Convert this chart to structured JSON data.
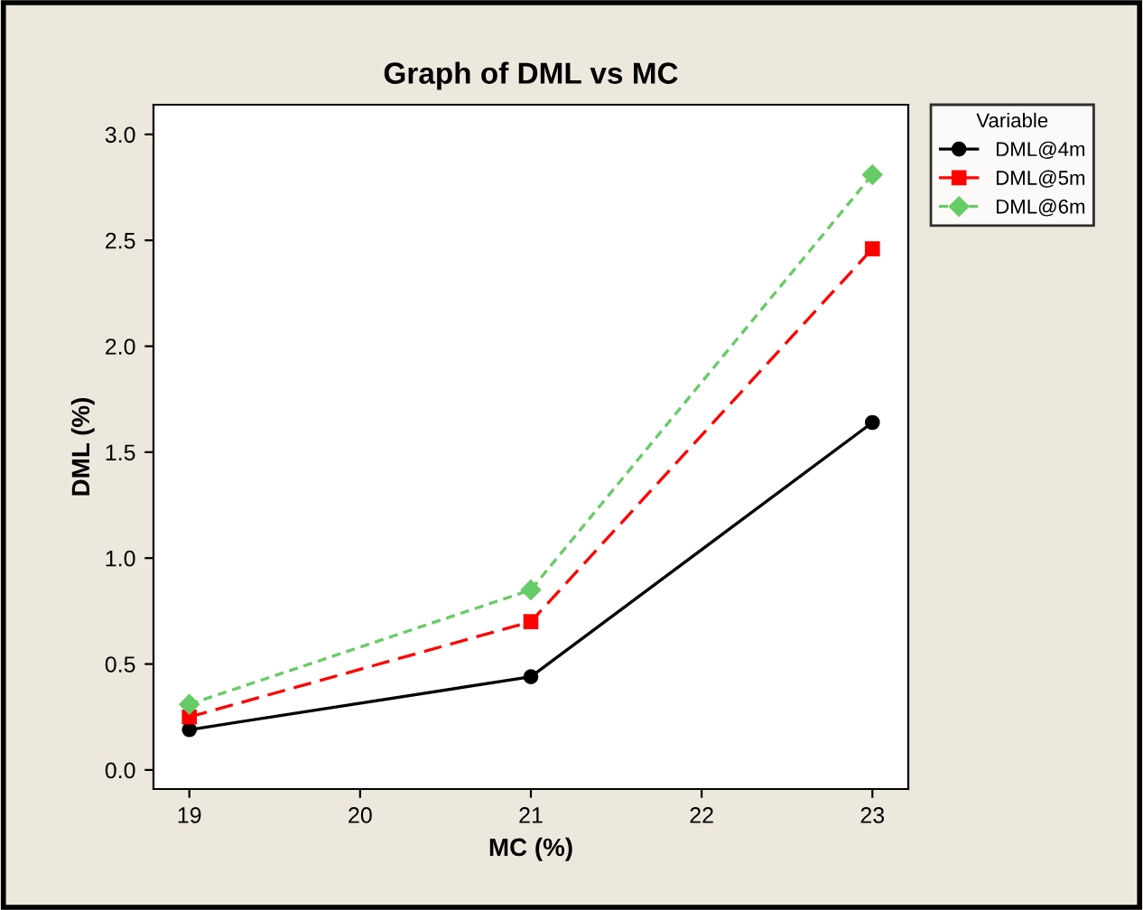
{
  "chart_data": {
    "type": "line",
    "title": "Graph of DML vs MC",
    "xlabel": "MC (%)",
    "ylabel": "DML (%)",
    "legend_title": "Variable",
    "x": [
      19,
      21,
      23
    ],
    "series": [
      {
        "name": "DML@4m",
        "color": "#000000",
        "marker": "circle",
        "line_style": "solid",
        "values": [
          0.19,
          0.44,
          1.64
        ]
      },
      {
        "name": "DML@5m",
        "color": "#ff0000",
        "marker": "square",
        "line_style": "dashed",
        "values": [
          0.25,
          0.7,
          2.46
        ]
      },
      {
        "name": "DML@6m",
        "color": "#66cc66",
        "marker": "diamond",
        "line_style": "dotted",
        "values": [
          0.31,
          0.85,
          2.81
        ]
      }
    ],
    "xlim": [
      18.79,
      23.21
    ],
    "ylim": [
      -0.09,
      3.14
    ],
    "xticks": [
      19,
      20,
      21,
      22,
      23
    ],
    "yticks": [
      {
        "value": 0,
        "label": "0.0"
      },
      {
        "value": 0.5,
        "label": "0.5"
      },
      {
        "value": 1,
        "label": "1.0"
      },
      {
        "value": 1.5,
        "label": "1.5"
      },
      {
        "value": 2,
        "label": "2.0"
      },
      {
        "value": 2.5,
        "label": "2.5"
      },
      {
        "value": 3,
        "label": "3.0"
      }
    ],
    "grid": false,
    "legend": "right"
  }
}
